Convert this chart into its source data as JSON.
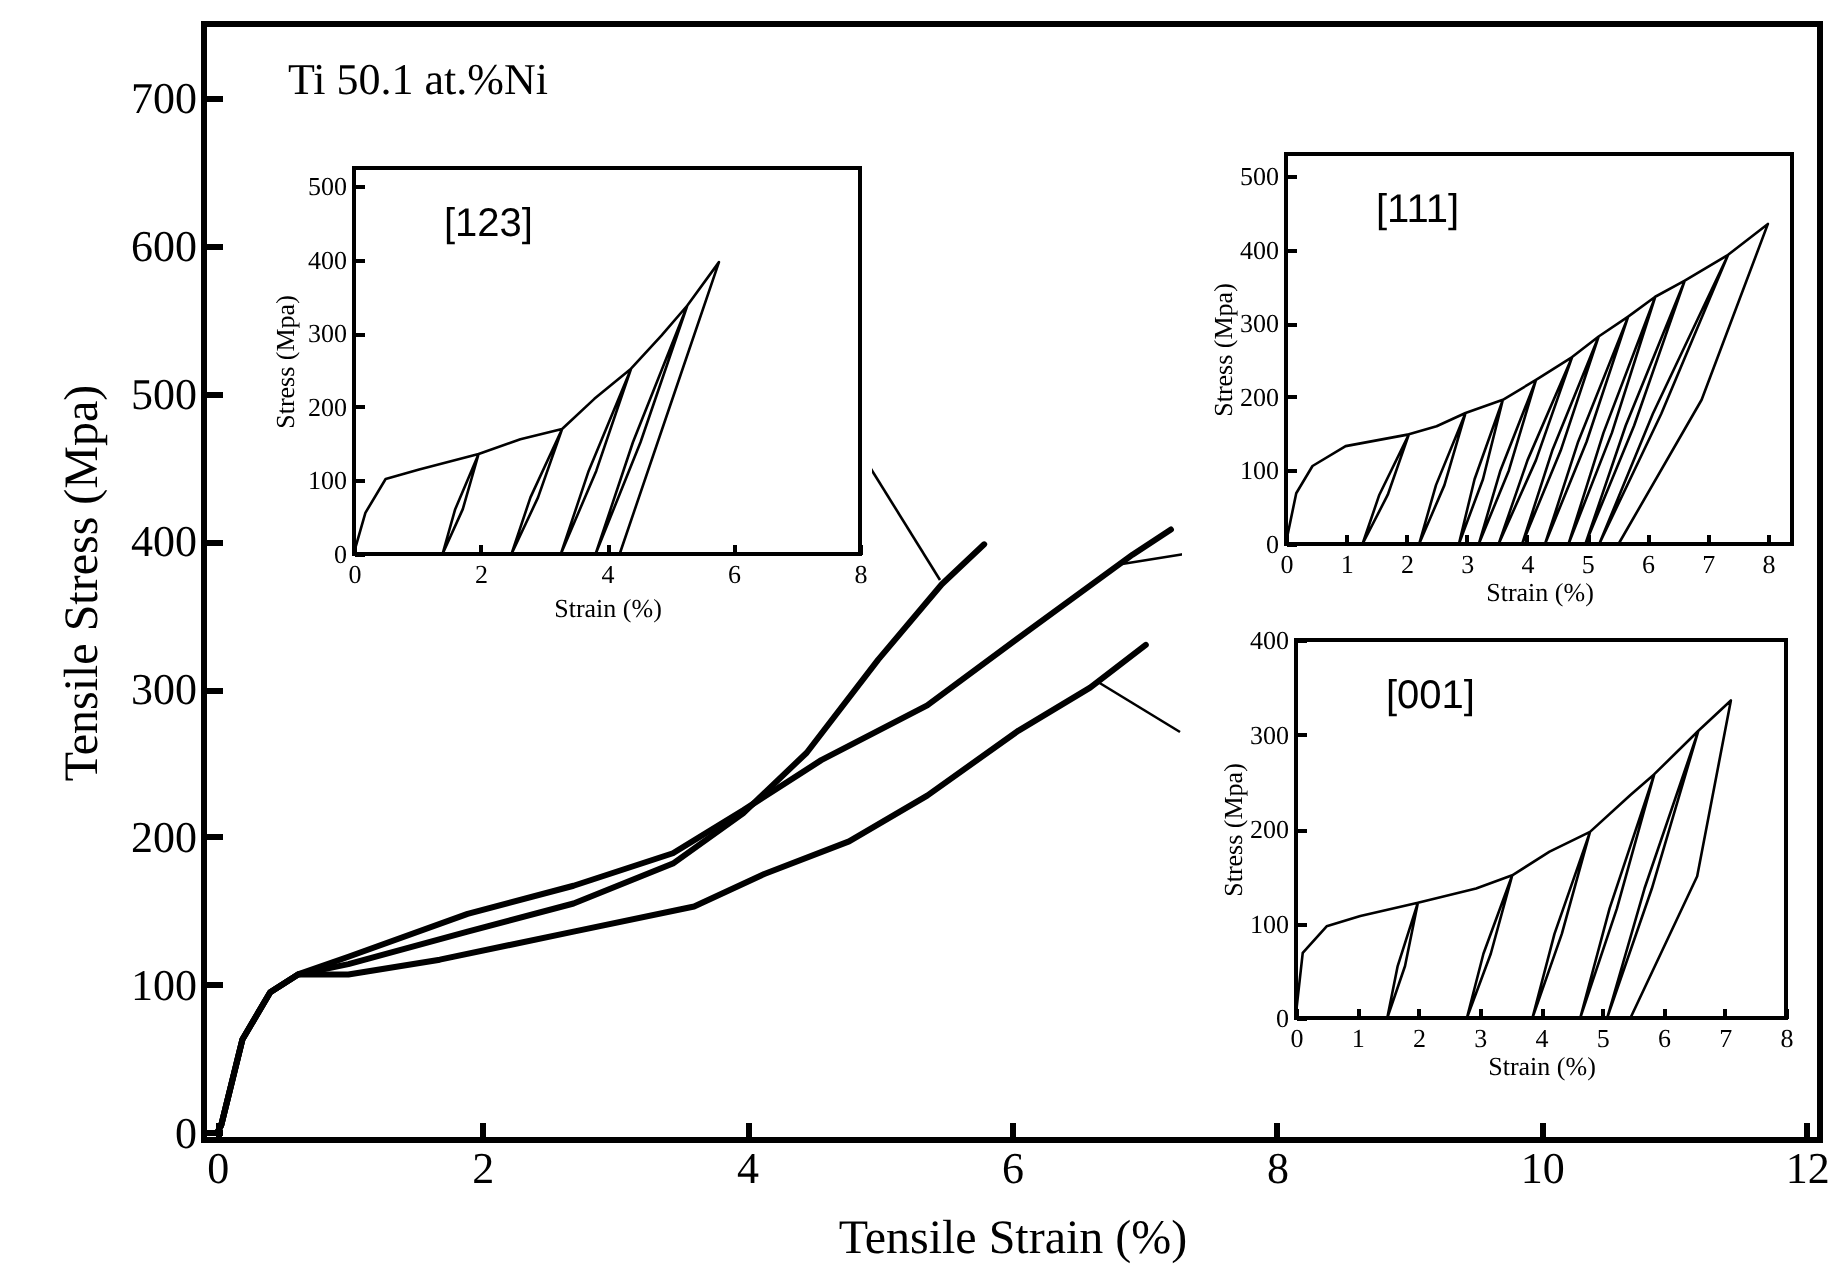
{
  "chart_data": [
    {
      "type": "line",
      "xlabel": "Tensile Strain (%)",
      "ylabel": "Tensile Stress (Mpa)",
      "annotations": [
        "Ti 50.1 at.%Ni"
      ],
      "xlim": [
        -0.1,
        12.1
      ],
      "ylim": [
        -5,
        750
      ],
      "xticks": [
        0,
        2,
        4,
        6,
        8,
        10,
        12
      ],
      "yticks": [
        0,
        100,
        200,
        300,
        400,
        500,
        600,
        700
      ],
      "series": [
        {
          "color": "#000000",
          "x": [
            0,
            0.03,
            0.19,
            0.4,
            0.61,
            0.99,
            1.89,
            2.69,
            3.44,
            3.97,
            4.45,
            4.99,
            5.47,
            5.79
          ],
          "values": [
            0,
            5,
            63,
            95,
            107,
            114,
            136,
            155,
            182,
            216,
            257,
            320,
            371,
            398
          ]
        },
        {
          "color": "#000000",
          "x": [
            0,
            0.03,
            0.19,
            0.4,
            0.61,
            0.99,
            1.89,
            2.69,
            3.44,
            3.97,
            4.56,
            5.36,
            6.16,
            6.91,
            7.2
          ],
          "values": [
            0,
            5,
            63,
            95,
            107,
            119,
            148,
            167,
            189,
            218,
            252,
            289,
            342,
            391,
            408
          ]
        },
        {
          "color": "#000000",
          "x": [
            0,
            0.03,
            0.19,
            0.4,
            0.61,
            0.99,
            1.68,
            2.69,
            3.6,
            4.13,
            4.77,
            5.36,
            6.05,
            6.59,
            7.01
          ],
          "values": [
            0,
            5,
            63,
            95,
            107,
            107,
            117,
            136,
            153,
            175,
            197,
            228,
            272,
            301,
            330
          ]
        }
      ]
    },
    {
      "type": "line",
      "xlabel": "Strain (%)",
      "ylabel": "Stress (Mpa)",
      "annotations": [
        "[123]"
      ],
      "xlim": [
        0,
        8
      ],
      "ylim": [
        0,
        525
      ],
      "xticks": [
        0,
        2,
        4,
        6,
        8
      ],
      "yticks": [
        0,
        100,
        200,
        300,
        400,
        500
      ],
      "series": [
        {
          "color": "#000000",
          "x": [
            0,
            0.18,
            0.5,
            1.03,
            1.97,
            1.72,
            1.4,
            1.6,
            1.97,
            2.63,
            3.29,
            2.91,
            2.49,
            2.79,
            3.29,
            3.8,
            4.38,
            3.83,
            3.27,
            3.71,
            4.38,
            4.86,
            5.27,
            4.53,
            3.82,
            4.41,
            5.27,
            5.77,
            5.07,
            4.2
          ],
          "values": [
            2,
            56,
            102,
            115,
            136,
            61,
            0,
            61,
            136,
            156,
            170,
            77,
            0,
            77,
            170,
            211,
            252,
            113,
            0,
            113,
            252,
            297,
            338,
            152,
            0,
            152,
            338,
            397,
            220,
            0
          ]
        }
      ]
    },
    {
      "type": "line",
      "xlabel": "Strain (%)",
      "ylabel": "Stress (Mpa)",
      "annotations": [
        "[111]"
      ],
      "xlim": [
        0,
        8.4
      ],
      "ylim": [
        0,
        530
      ],
      "xticks": [
        0,
        1,
        2,
        3,
        4,
        5,
        6,
        7,
        8
      ],
      "yticks": [
        0,
        100,
        200,
        300,
        400,
        500
      ],
      "series": [
        {
          "color": "#000000",
          "x": [
            0,
            0.17,
            0.44,
            0.99,
            2.04,
            1.69,
            1.27,
            1.55,
            2.04,
            2.5,
            2.98,
            2.63,
            2.21,
            2.49,
            2.98,
            3.6,
            3.27,
            2.87,
            3.13,
            3.6,
            4.15,
            3.7,
            3.2,
            3.56,
            4.15,
            4.75,
            4.15,
            3.53,
            4.01,
            4.75,
            5.19,
            4.56,
            3.92,
            4.42,
            5.19,
            5.68,
            4.99,
            4.3,
            4.85,
            5.68,
            6.13,
            5.41,
            4.69,
            5.27,
            6.13,
            6.62,
            5.78,
            4.97,
            5.64,
            6.62,
            7.34,
            6.23,
            5.2,
            6.09,
            7.34,
            8.0,
            6.9,
            5.52
          ],
          "values": [
            2,
            69,
            106,
            133,
            149,
            67,
            0,
            67,
            149,
            160,
            178,
            80,
            0,
            80,
            178,
            196,
            88,
            0,
            88,
            196,
            223,
            100,
            0,
            100,
            223,
            254,
            114,
            0,
            114,
            254,
            282,
            127,
            0,
            127,
            282,
            309,
            139,
            0,
            139,
            309,
            336,
            151,
            0,
            151,
            336,
            358,
            161,
            0,
            161,
            358,
            393,
            177,
            0,
            177,
            393,
            435,
            196,
            0
          ]
        }
      ]
    },
    {
      "type": "line",
      "xlabel": "Strain (%)",
      "ylabel": "Stress (Mpa)",
      "annotations": [
        "[001]"
      ],
      "xlim": [
        0,
        8
      ],
      "ylim": [
        0,
        400
      ],
      "xticks": [
        0,
        1,
        2,
        3,
        4,
        5,
        6,
        7,
        8
      ],
      "yticks": [
        0,
        100,
        200,
        300,
        400
      ],
      "series": [
        {
          "color": "#000000",
          "x": [
            0,
            0.11,
            0.5,
            1.05,
            1.99,
            1.78,
            1.49,
            1.66,
            1.99,
            2.94,
            3.53,
            3.18,
            2.79,
            3.06,
            3.53,
            4.14,
            4.8,
            4.34,
            3.86,
            4.22,
            4.8,
            5.46,
            5.85,
            5.24,
            4.64,
            5.12,
            5.85,
            6.57,
            5.81,
            5.08,
            5.69,
            6.57,
            7.1,
            6.55,
            5.46
          ],
          "values": [
            5,
            69,
            97,
            108,
            122,
            55,
            0,
            55,
            122,
            137,
            151,
            68,
            0,
            68,
            151,
            176,
            197,
            89,
            0,
            89,
            197,
            236,
            258,
            116,
            0,
            116,
            258,
            304,
            137,
            0,
            137,
            304,
            336,
            150,
            0
          ]
        }
      ]
    }
  ]
}
